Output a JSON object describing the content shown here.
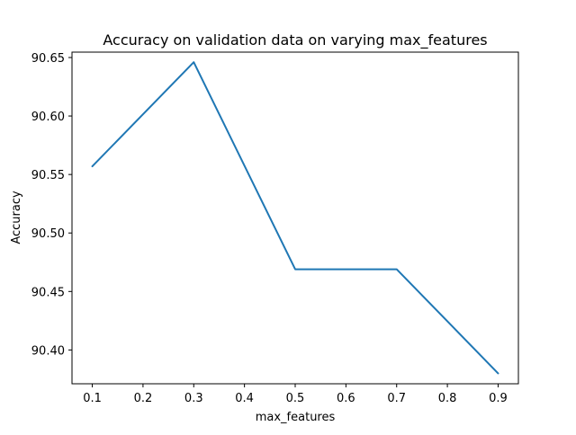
{
  "chart_data": {
    "type": "line",
    "title": "Accuracy on validation data on varying max_features",
    "xlabel": "max_features",
    "ylabel": "Accuracy",
    "x": [
      0.1,
      0.3,
      0.5,
      0.7,
      0.9
    ],
    "series": [
      {
        "values": [
          90.557,
          90.646,
          90.469,
          90.469,
          90.38
        ],
        "color": "#1f77b4"
      }
    ],
    "xticks": [
      "0.1",
      "0.2",
      "0.3",
      "0.4",
      "0.5",
      "0.6",
      "0.7",
      "0.8",
      "0.9"
    ],
    "yticks": [
      "90.40",
      "90.45",
      "90.50",
      "90.55",
      "90.60",
      "90.65"
    ],
    "xlim": [
      0.06,
      0.94
    ],
    "ylim": [
      90.3711,
      90.6546
    ],
    "grid": false
  }
}
